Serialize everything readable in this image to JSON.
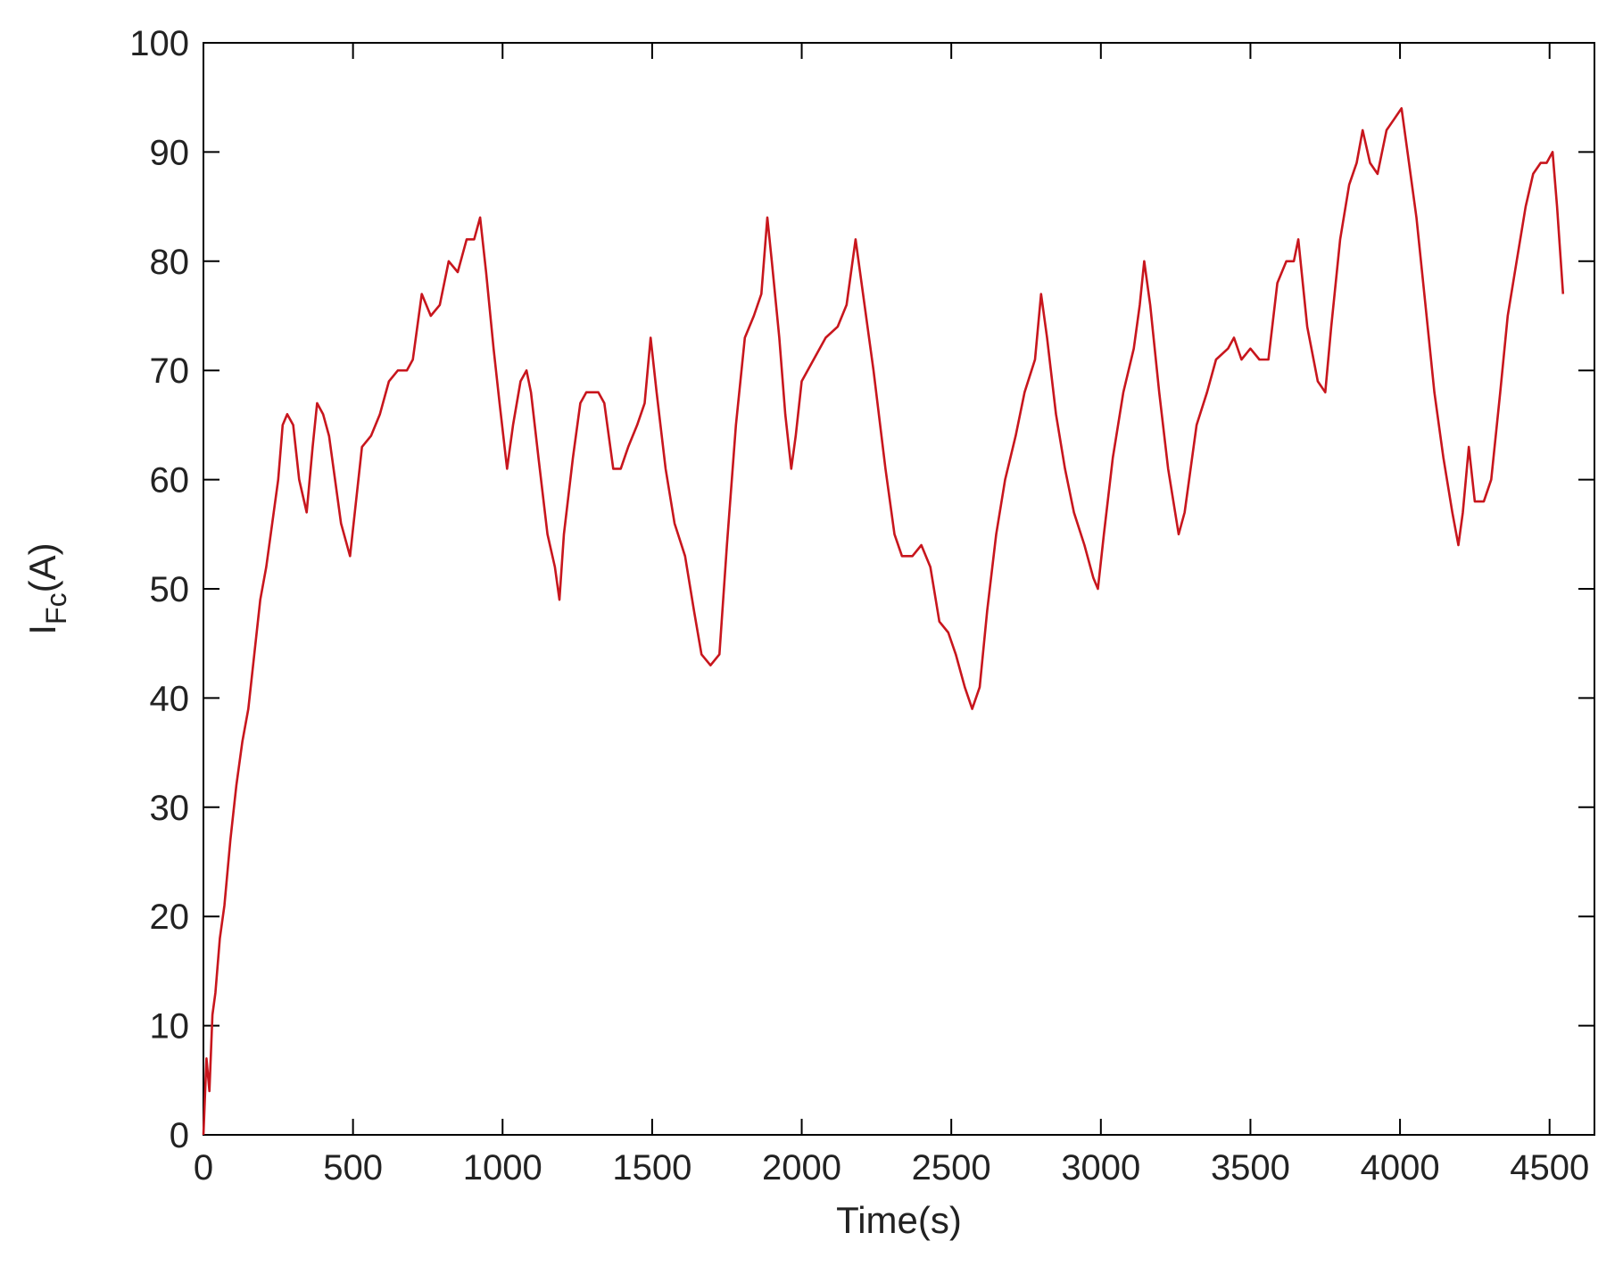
{
  "chart_data": {
    "type": "line",
    "title": "",
    "xlabel": "Time(s)",
    "ylabel": {
      "main": "I",
      "subscript": "Fc",
      "suffix": "(A)"
    },
    "xlim": [
      0,
      4650
    ],
    "ylim": [
      0,
      100
    ],
    "x_ticks": [
      0,
      500,
      1000,
      1500,
      2000,
      2500,
      3000,
      3500,
      4000,
      4500
    ],
    "x_tick_labels": [
      "0",
      "500",
      "1000",
      "1500",
      "2000",
      "2500",
      "3000",
      "3500",
      "4000",
      "4500"
    ],
    "y_ticks": [
      0,
      10,
      20,
      30,
      40,
      50,
      60,
      70,
      80,
      90,
      100
    ],
    "y_tick_labels": [
      "0",
      "10",
      "20",
      "30",
      "40",
      "50",
      "60",
      "70",
      "80",
      "90",
      "100"
    ],
    "grid": false,
    "legend": "none",
    "colors": {
      "line": "#c8161d",
      "axis": "#000000"
    },
    "series": [
      {
        "points": [
          [
            0,
            0
          ],
          [
            10,
            7
          ],
          [
            20,
            4
          ],
          [
            30,
            11
          ],
          [
            40,
            13
          ],
          [
            55,
            18
          ],
          [
            70,
            21
          ],
          [
            90,
            27
          ],
          [
            110,
            32
          ],
          [
            130,
            36
          ],
          [
            150,
            39
          ],
          [
            170,
            44
          ],
          [
            190,
            49
          ],
          [
            210,
            52
          ],
          [
            230,
            56
          ],
          [
            250,
            60
          ],
          [
            265,
            65
          ],
          [
            280,
            66
          ],
          [
            300,
            65
          ],
          [
            320,
            60
          ],
          [
            345,
            57
          ],
          [
            365,
            63
          ],
          [
            380,
            67
          ],
          [
            400,
            66
          ],
          [
            420,
            64
          ],
          [
            440,
            60
          ],
          [
            460,
            56
          ],
          [
            490,
            53
          ],
          [
            510,
            58
          ],
          [
            530,
            63
          ],
          [
            560,
            64
          ],
          [
            590,
            66
          ],
          [
            620,
            69
          ],
          [
            650,
            70
          ],
          [
            680,
            70
          ],
          [
            700,
            71
          ],
          [
            730,
            77
          ],
          [
            760,
            75
          ],
          [
            790,
            76
          ],
          [
            820,
            80
          ],
          [
            850,
            79
          ],
          [
            880,
            82
          ],
          [
            905,
            82
          ],
          [
            925,
            84
          ],
          [
            945,
            79
          ],
          [
            970,
            72
          ],
          [
            990,
            67
          ],
          [
            1015,
            61
          ],
          [
            1035,
            65
          ],
          [
            1060,
            69
          ],
          [
            1080,
            70
          ],
          [
            1095,
            68
          ],
          [
            1120,
            62
          ],
          [
            1150,
            55
          ],
          [
            1175,
            52
          ],
          [
            1190,
            49
          ],
          [
            1205,
            55
          ],
          [
            1235,
            62
          ],
          [
            1260,
            67
          ],
          [
            1280,
            68
          ],
          [
            1320,
            68
          ],
          [
            1340,
            67
          ],
          [
            1370,
            61
          ],
          [
            1395,
            61
          ],
          [
            1420,
            63
          ],
          [
            1450,
            65
          ],
          [
            1475,
            67
          ],
          [
            1495,
            73
          ],
          [
            1515,
            68
          ],
          [
            1545,
            61
          ],
          [
            1575,
            56
          ],
          [
            1610,
            53
          ],
          [
            1640,
            48
          ],
          [
            1665,
            44
          ],
          [
            1695,
            43
          ],
          [
            1725,
            44
          ],
          [
            1750,
            54
          ],
          [
            1780,
            65
          ],
          [
            1810,
            73
          ],
          [
            1840,
            75
          ],
          [
            1865,
            77
          ],
          [
            1885,
            84
          ],
          [
            1900,
            80
          ],
          [
            1925,
            73
          ],
          [
            1945,
            66
          ],
          [
            1965,
            61
          ],
          [
            1980,
            64
          ],
          [
            2000,
            69
          ],
          [
            2040,
            71
          ],
          [
            2080,
            73
          ],
          [
            2120,
            74
          ],
          [
            2150,
            76
          ],
          [
            2180,
            82
          ],
          [
            2200,
            78
          ],
          [
            2240,
            70
          ],
          [
            2280,
            61
          ],
          [
            2310,
            55
          ],
          [
            2335,
            53
          ],
          [
            2370,
            53
          ],
          [
            2400,
            54
          ],
          [
            2430,
            52
          ],
          [
            2460,
            47
          ],
          [
            2490,
            46
          ],
          [
            2515,
            44
          ],
          [
            2545,
            41
          ],
          [
            2570,
            39
          ],
          [
            2595,
            41
          ],
          [
            2620,
            48
          ],
          [
            2650,
            55
          ],
          [
            2680,
            60
          ],
          [
            2715,
            64
          ],
          [
            2745,
            68
          ],
          [
            2780,
            71
          ],
          [
            2800,
            77
          ],
          [
            2820,
            73
          ],
          [
            2850,
            66
          ],
          [
            2880,
            61
          ],
          [
            2910,
            57
          ],
          [
            2945,
            54
          ],
          [
            2975,
            51
          ],
          [
            2990,
            50
          ],
          [
            3010,
            55
          ],
          [
            3040,
            62
          ],
          [
            3075,
            68
          ],
          [
            3110,
            72
          ],
          [
            3130,
            76
          ],
          [
            3145,
            80
          ],
          [
            3165,
            76
          ],
          [
            3195,
            68
          ],
          [
            3225,
            61
          ],
          [
            3260,
            55
          ],
          [
            3280,
            57
          ],
          [
            3320,
            65
          ],
          [
            3355,
            68
          ],
          [
            3385,
            71
          ],
          [
            3425,
            72
          ],
          [
            3445,
            73
          ],
          [
            3470,
            71
          ],
          [
            3500,
            72
          ],
          [
            3530,
            71
          ],
          [
            3560,
            71
          ],
          [
            3590,
            78
          ],
          [
            3620,
            80
          ],
          [
            3645,
            80
          ],
          [
            3660,
            82
          ],
          [
            3690,
            74
          ],
          [
            3725,
            69
          ],
          [
            3750,
            68
          ],
          [
            3770,
            74
          ],
          [
            3800,
            82
          ],
          [
            3830,
            87
          ],
          [
            3855,
            89
          ],
          [
            3875,
            92
          ],
          [
            3900,
            89
          ],
          [
            3925,
            88
          ],
          [
            3955,
            92
          ],
          [
            3980,
            93
          ],
          [
            4005,
            94
          ],
          [
            4025,
            90
          ],
          [
            4055,
            84
          ],
          [
            4085,
            76
          ],
          [
            4115,
            68
          ],
          [
            4145,
            62
          ],
          [
            4175,
            57
          ],
          [
            4195,
            54
          ],
          [
            4210,
            57
          ],
          [
            4230,
            63
          ],
          [
            4250,
            58
          ],
          [
            4280,
            58
          ],
          [
            4305,
            60
          ],
          [
            4335,
            68
          ],
          [
            4360,
            75
          ],
          [
            4390,
            80
          ],
          [
            4420,
            85
          ],
          [
            4445,
            88
          ],
          [
            4470,
            89
          ],
          [
            4490,
            89
          ],
          [
            4510,
            90
          ],
          [
            4525,
            85
          ],
          [
            4545,
            77
          ]
        ]
      }
    ]
  }
}
